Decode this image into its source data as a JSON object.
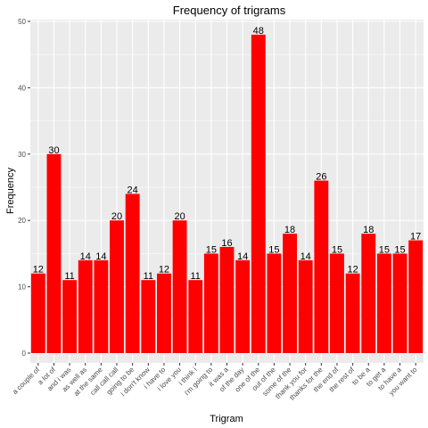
{
  "chart_data": {
    "type": "bar",
    "title": "Frequency of trigrams",
    "xlabel": "Trigram",
    "ylabel": "Frequency",
    "ylim": [
      0,
      50
    ],
    "yticks": [
      0,
      10,
      20,
      30,
      40,
      50
    ],
    "categories": [
      "a couple of",
      "a lot of",
      "and i was",
      "as well as",
      "at the same",
      "call call call",
      "going to be",
      "i don't know",
      "i have to",
      "i love you",
      "i think i",
      "i'm going to",
      "it was a",
      "of the day",
      "one of the",
      "out of the",
      "some of the",
      "thank you for",
      "thanks for the",
      "the end of",
      "the rest of",
      "to be a",
      "to get a",
      "to have a",
      "you want to"
    ],
    "values": [
      12,
      30,
      11,
      14,
      14,
      20,
      24,
      11,
      12,
      20,
      11,
      15,
      16,
      14,
      48,
      15,
      18,
      14,
      26,
      15,
      12,
      18,
      15,
      15,
      17
    ],
    "bar_color": "#ff0000",
    "panel_color": "#ebebeb",
    "grid_color": "#ffffff"
  }
}
